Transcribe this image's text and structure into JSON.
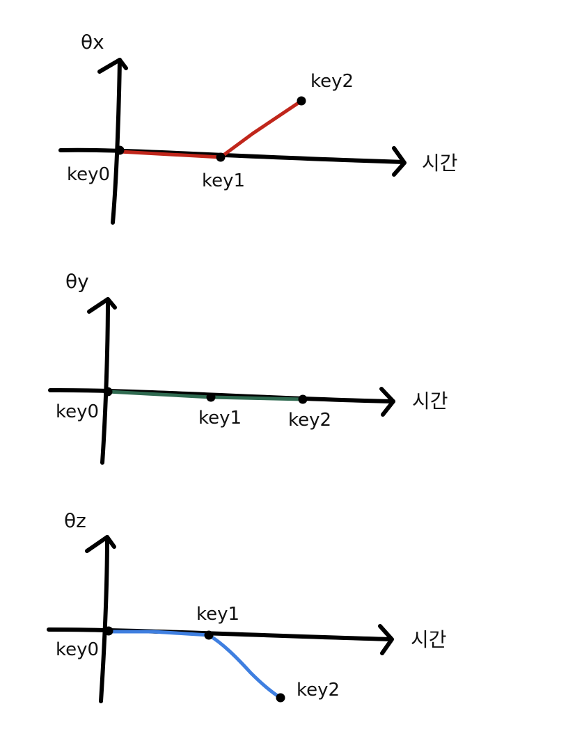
{
  "colors": {
    "axis": "#000000",
    "x_curve": "#c0261b",
    "y_curve": "#2f6a50",
    "z_curve": "#3f7fe0"
  },
  "graphs": [
    {
      "axis_label": "θx",
      "time_label": "시간",
      "keys": [
        {
          "label": "key0",
          "value": 0
        },
        {
          "label": "key1",
          "value": -0.08
        },
        {
          "label": "key2",
          "value": 0.72
        }
      ]
    },
    {
      "axis_label": "θy",
      "time_label": "시간",
      "keys": [
        {
          "label": "key0",
          "value": 0
        },
        {
          "label": "key1",
          "value": 0
        },
        {
          "label": "key2",
          "value": 0
        }
      ]
    },
    {
      "axis_label": "θz",
      "time_label": "시간",
      "keys": [
        {
          "label": "key0",
          "value": 0
        },
        {
          "label": "key1",
          "value": 0
        },
        {
          "label": "key2",
          "value": -0.62
        }
      ]
    }
  ]
}
